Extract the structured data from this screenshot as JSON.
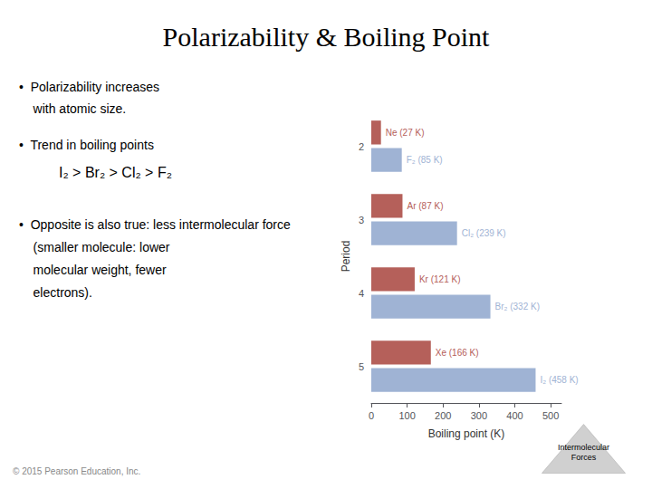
{
  "chart_data": {
    "type": "bar",
    "orientation": "horizontal",
    "title": "Polarizability & Boiling Point",
    "xlabel": "Boiling point (K)",
    "ylabel": "Period",
    "categories": [
      "2",
      "3",
      "4",
      "5"
    ],
    "series": [
      {
        "color": "#b5605a",
        "values": [
          27,
          87,
          121,
          166
        ],
        "value_labels": [
          "Ne (27 K)",
          "Ar (87 K)",
          "Kr (121 K)",
          "Xe (166 K)"
        ]
      },
      {
        "color": "#9fb3d4",
        "values": [
          85,
          239,
          332,
          458
        ],
        "value_labels": [
          "F₂ (85 K)",
          "Cl₂ (239 K)",
          "Br₂ (332 K)",
          "I₂ (458 K)"
        ]
      }
    ],
    "xlim": [
      0,
      530
    ],
    "xticks": [
      0,
      100,
      200,
      300,
      400,
      500
    ],
    "data_labels": true,
    "grid": false,
    "annotations": [
      "•  Polarizability increases\n    with atomic size.",
      "•  Trend in boiling points",
      "I₂ > Br₂ > Cl₂ > F₂",
      "•  Opposite is also true: less intermolecular force\n    (smaller molecule: lower\n    molecular weight, fewer\n    electrons).",
      "© 2015 Pearson Education, Inc.",
      "Intermolecular\nForces"
    ]
  }
}
